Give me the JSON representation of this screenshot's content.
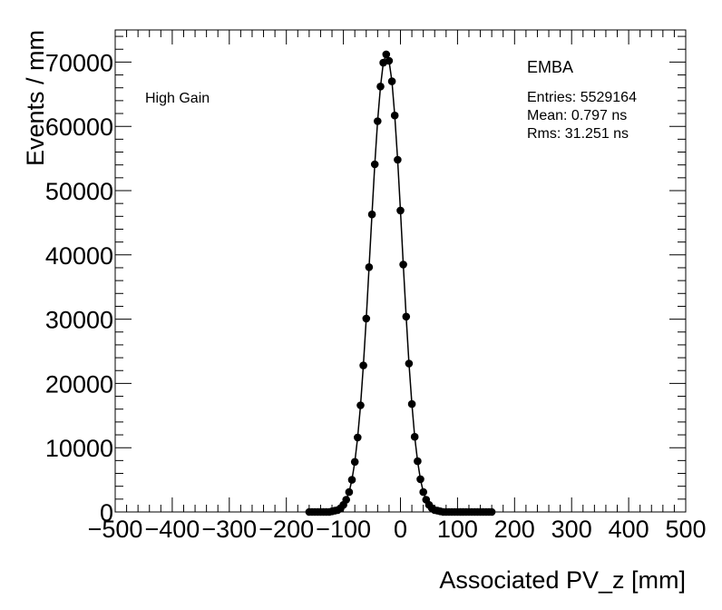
{
  "chart_data": {
    "type": "scatter",
    "title": "",
    "xlabel": "Associated PV_z [mm]",
    "ylabel": "Events / mm",
    "xlim": [
      -500,
      500
    ],
    "ylim": [
      0,
      75000
    ],
    "x_ticks": [
      -500,
      -400,
      -300,
      -200,
      -100,
      0,
      100,
      200,
      300,
      400,
      500
    ],
    "x_tick_labels": [
      "−500",
      "−400",
      "−300",
      "−200",
      "−100",
      "0",
      "100",
      "200",
      "300",
      "400",
      "500"
    ],
    "y_ticks": [
      0,
      10000,
      20000,
      30000,
      40000,
      50000,
      60000,
      70000
    ],
    "y_tick_labels": [
      "0",
      "10000",
      "20000",
      "30000",
      "40000",
      "50000",
      "60000",
      "70000"
    ],
    "grid": false,
    "legend": "none",
    "annotations": {
      "label": "High Gain",
      "region": "EMBA",
      "entries": "Entries: 5529164",
      "mean": "Mean: 0.797 ns",
      "rms": "Rms: 31.251 ns"
    },
    "series": [
      {
        "name": "Associated PV_z",
        "marker": "circle",
        "color": "#000000",
        "x": [
          -160,
          -155,
          -150,
          -145,
          -140,
          -135,
          -130,
          -125,
          -120,
          -115,
          -110,
          -105,
          -100,
          -95,
          -90,
          -85,
          -80,
          -75,
          -70,
          -65,
          -60,
          -55,
          -50,
          -45,
          -40,
          -35,
          -30,
          -25,
          -20,
          -15,
          -10,
          -5,
          0,
          5,
          10,
          15,
          20,
          25,
          30,
          35,
          40,
          45,
          50,
          55,
          60,
          65,
          70,
          75,
          80,
          85,
          90,
          95,
          100,
          105,
          110,
          115,
          120,
          125,
          130,
          135,
          140,
          145,
          150,
          155,
          160
        ],
        "values": [
          0,
          0,
          0,
          0,
          0,
          0,
          0,
          0,
          100,
          200,
          300,
          600,
          1100,
          1900,
          3100,
          5000,
          7800,
          11600,
          16600,
          22800,
          30100,
          38100,
          46300,
          54100,
          60800,
          66200,
          69900,
          71200,
          70200,
          67000,
          61700,
          54800,
          46900,
          38500,
          30400,
          23100,
          16800,
          11700,
          7900,
          5100,
          3100,
          1900,
          1100,
          600,
          300,
          200,
          100,
          0,
          0,
          0,
          0,
          0,
          0,
          0,
          0,
          0,
          0,
          0,
          0,
          0,
          0,
          0,
          0,
          0,
          0
        ]
      }
    ]
  }
}
